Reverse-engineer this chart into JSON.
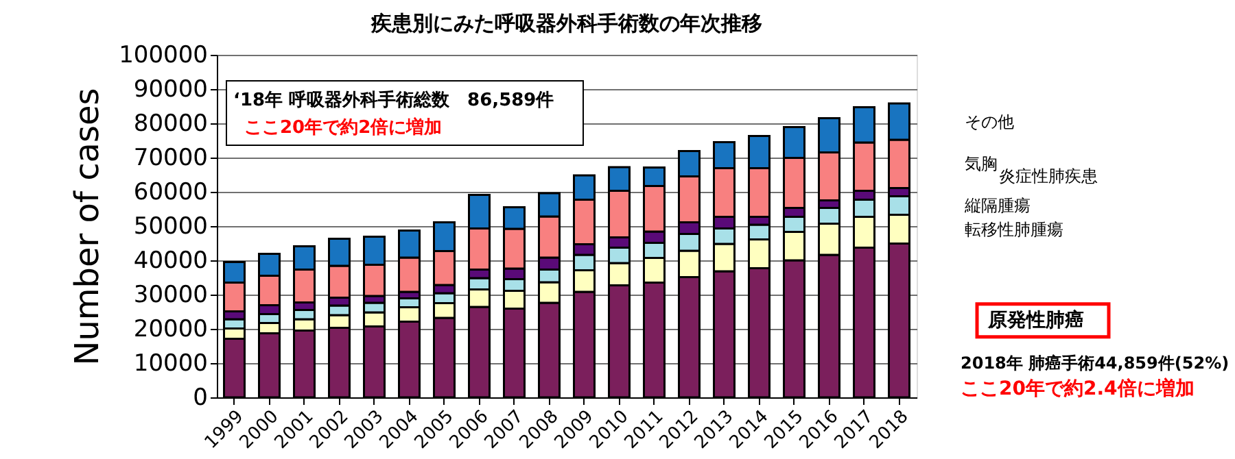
{
  "chart_data": {
    "type": "bar",
    "title": "疾患別にみた呼吸器外科手術数の年次推移",
    "ylabel": "Number of cases",
    "stacked": true,
    "legend": false,
    "grid": "y",
    "categories": [
      "1999",
      "2000",
      "2001",
      "2002",
      "2003",
      "2004",
      "2005",
      "2006",
      "2007",
      "2008",
      "2009",
      "2010",
      "2011",
      "2012",
      "2013",
      "2014",
      "2015",
      "2016",
      "2017",
      "2018"
    ],
    "ylim": [
      0,
      100000
    ],
    "yticks": [
      0,
      10000,
      20000,
      30000,
      40000,
      50000,
      60000,
      70000,
      80000,
      90000,
      100000
    ],
    "series": [
      {
        "name": "原発性肺癌",
        "color": "#7b1f5c",
        "values": [
          17100,
          18700,
          19500,
          20300,
          20700,
          22100,
          23200,
          26400,
          25900,
          27600,
          30800,
          32700,
          33500,
          35100,
          36800,
          37700,
          40000,
          41600,
          43700,
          44900
        ]
      },
      {
        "name": "転移性肺腫瘍",
        "color": "#ffffc0",
        "values": [
          3000,
          3000,
          3300,
          3700,
          4100,
          4200,
          4300,
          5100,
          5200,
          6000,
          6300,
          6500,
          7200,
          7700,
          8000,
          8400,
          8300,
          9100,
          9000,
          8400
        ]
      },
      {
        "name": "縦隔腫瘍",
        "color": "#a8e0e8",
        "values": [
          2700,
          2600,
          2700,
          2800,
          2800,
          2600,
          2900,
          3300,
          3400,
          3700,
          4500,
          4500,
          4400,
          4900,
          4500,
          4300,
          4400,
          4600,
          5000,
          5400
        ]
      },
      {
        "name": "炎症性肺疾患",
        "color": "#5a0a78",
        "values": [
          2300,
          2600,
          2200,
          2300,
          2000,
          1900,
          2400,
          2500,
          3100,
          3500,
          3100,
          3000,
          3300,
          3400,
          3400,
          2300,
          2600,
          2200,
          2600,
          2400
        ]
      },
      {
        "name": "気胸",
        "color": "#f88080",
        "values": [
          8400,
          8600,
          9600,
          9300,
          9100,
          10000,
          9900,
          12000,
          11600,
          12000,
          13000,
          13600,
          13300,
          13400,
          14200,
          14200,
          14600,
          14000,
          14100,
          14100
        ]
      },
      {
        "name": "その他",
        "color": "#1874c0",
        "values": [
          6000,
          6400,
          6800,
          7900,
          8200,
          7900,
          8400,
          9800,
          6300,
          6800,
          7100,
          6900,
          5400,
          7400,
          7600,
          9400,
          9000,
          10000,
          10300,
          10600
        ]
      }
    ],
    "annotations": [
      "‘18年 呼吸器外科手術総数　86,589件",
      "ここ20年で約2倍に増加",
      "2018年 肺癌手術44,859件(52%)",
      "ここ20年で約2.4倍に増加"
    ]
  }
}
